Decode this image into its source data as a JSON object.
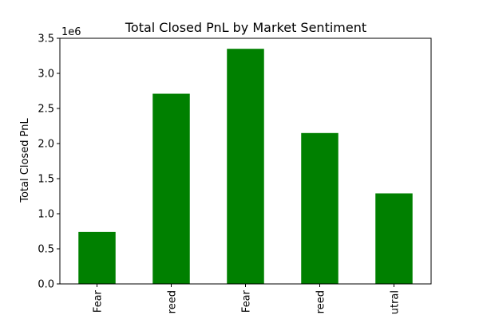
{
  "chart_data": {
    "type": "bar",
    "title": "Total Closed PnL by Market Sentiment",
    "xlabel": "",
    "ylabel": "Total Closed PnL",
    "y_multiplier_label": "1e6",
    "categories_visible_text": [
      "Fear",
      "reed",
      "Fear",
      "reed",
      "utral"
    ],
    "values": [
      740000,
      2710000,
      3350000,
      2150000,
      1290000
    ],
    "ylim": [
      0,
      3500000
    ],
    "yticks": [
      0,
      500000,
      1000000,
      1500000,
      2000000,
      2500000,
      3000000,
      3500000
    ],
    "ytick_labels": [
      "0.0",
      "0.5",
      "1.0",
      "1.5",
      "2.0",
      "2.5",
      "3.0",
      "3.5"
    ],
    "bar_color": "#008000",
    "grid": false,
    "legend": "none"
  }
}
